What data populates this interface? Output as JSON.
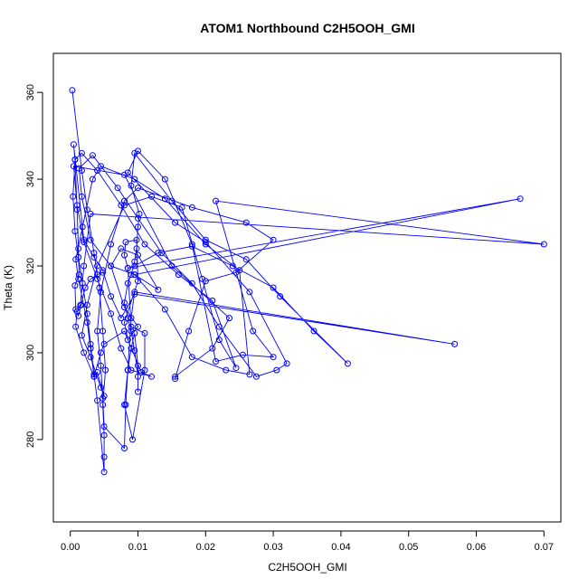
{
  "chart_data": {
    "type": "scatter",
    "title": "ATOM1 Northbound C2H5OOH_GMI",
    "xlabel": "C2H5OOH_GMI",
    "ylabel": "Theta (K)",
    "xlim": [
      -0.0025,
      0.0725
    ],
    "ylim": [
      261,
      369
    ],
    "x_ticks": [
      0.0,
      0.01,
      0.02,
      0.03,
      0.04,
      0.05,
      0.06,
      0.07
    ],
    "x_tick_labels": [
      "0.00",
      "0.01",
      "0.02",
      "0.03",
      "0.04",
      "0.05",
      "0.06",
      "0.07"
    ],
    "y_ticks": [
      280,
      300,
      320,
      340,
      360
    ],
    "y_tick_labels": [
      "280",
      "300",
      "320",
      "340",
      "360"
    ],
    "grid": false,
    "legend": "none",
    "series": [
      {
        "color": "#0000ff",
        "style": "line+points",
        "points": [
          [
            0.0003,
            360.5
          ],
          [
            0.0017,
            342.0
          ],
          [
            0.0025,
            333.0
          ],
          [
            0.0035,
            323.0
          ],
          [
            0.0043,
            315.0
          ],
          [
            0.0048,
            305.0
          ],
          [
            0.0052,
            296.0
          ],
          [
            0.0048,
            288.0
          ],
          [
            0.005,
            281.0
          ],
          [
            0.005,
            276.0
          ],
          [
            0.005,
            272.5
          ],
          [
            0.004,
            289.0
          ],
          [
            0.0035,
            295.0
          ],
          [
            0.003,
            302.0
          ],
          [
            0.0025,
            309.0
          ],
          [
            0.0018,
            316.0
          ],
          [
            0.0012,
            322.0
          ],
          [
            0.0007,
            328.0
          ],
          [
            0.0004,
            336.0
          ],
          [
            0.0007,
            344.5
          ],
          [
            0.0017,
            346.0
          ],
          [
            0.004,
            342.0
          ],
          [
            0.0075,
            334.0
          ],
          [
            0.011,
            325.0
          ],
          [
            0.016,
            318.0
          ],
          [
            0.021,
            312.0
          ],
          [
            0.0245,
            296.5
          ],
          [
            0.022,
            303.0
          ],
          [
            0.0195,
            317.0
          ],
          [
            0.0165,
            333.5
          ],
          [
            0.012,
            336.0
          ],
          [
            0.008,
            334.0
          ],
          [
            0.004,
            320.0
          ],
          [
            0.0025,
            311.0
          ],
          [
            0.0017,
            304.0
          ],
          [
            0.003,
            299.0
          ],
          [
            0.0045,
            292.0
          ],
          [
            0.005,
            290.0
          ],
          [
            0.004,
            295.5
          ],
          [
            0.0035,
            294.5
          ],
          [
            0.003,
            301.0
          ],
          [
            0.0025,
            307.0
          ],
          [
            0.0012,
            317.0
          ],
          [
            0.0008,
            321.5
          ],
          [
            0.0018,
            329.0
          ],
          [
            0.0033,
            340.0
          ],
          [
            0.0045,
            343.0
          ],
          [
            0.0095,
            340.0
          ],
          [
            0.014,
            335.5
          ],
          [
            0.02,
            325.0
          ],
          [
            0.025,
            319.0
          ],
          [
            0.0265,
            295.0
          ],
          [
            0.023,
            296.0
          ],
          [
            0.018,
            299.0
          ],
          [
            0.014,
            310.0
          ],
          [
            0.0095,
            318.0
          ],
          [
            0.006,
            320.0
          ],
          [
            0.003,
            326.0
          ],
          [
            0.0017,
            336.0
          ],
          [
            0.0013,
            342.5
          ],
          [
            0.0033,
            345.5
          ],
          [
            0.007,
            338.0
          ],
          [
            0.01,
            331.0
          ],
          [
            0.0135,
            323.0
          ],
          [
            0.018,
            316.0
          ],
          [
            0.022,
            306.0
          ],
          [
            0.0275,
            294.5
          ],
          [
            0.0305,
            296.0
          ],
          [
            0.032,
            297.5
          ],
          [
            0.0265,
            314.0
          ],
          [
            0.02,
            325.5
          ],
          [
            0.0155,
            330.0
          ],
          [
            0.0085,
            341.5
          ],
          [
            0.01,
            346.5
          ],
          [
            0.014,
            340.0
          ],
          [
            0.018,
            325.0
          ],
          [
            0.0215,
            298.0
          ],
          [
            0.0255,
            299.5
          ],
          [
            0.03,
            299.0
          ],
          [
            0.027,
            305.0
          ],
          [
            0.0215,
            335.0
          ],
          [
            0.07,
            325.0
          ],
          [
            0.003,
            332.0
          ],
          [
            0.002,
            320.0
          ],
          [
            0.0015,
            311.0
          ],
          [
            0.001,
            309.5
          ],
          [
            0.0008,
            306.0
          ],
          [
            0.002,
            300.0
          ],
          [
            0.0035,
            294.5
          ],
          [
            0.0045,
            300.0
          ],
          [
            0.005,
            302.0
          ],
          [
            0.008,
            305.0
          ],
          [
            0.0105,
            295.5
          ],
          [
            0.012,
            294.5
          ],
          [
            0.009,
            296.0
          ],
          [
            0.0075,
            301.0
          ],
          [
            0.006,
            309.0
          ],
          [
            0.004,
            317.0
          ],
          [
            0.002,
            325.5
          ],
          [
            0.001,
            334.0
          ],
          [
            0.0005,
            343.0
          ],
          [
            0.008,
            341.0
          ],
          [
            0.015,
            320.0
          ],
          [
            0.0235,
            308.0
          ],
          [
            0.021,
            301.0
          ],
          [
            0.0155,
            294.5
          ],
          [
            0.0155,
            294.0
          ],
          [
            0.0175,
            305.0
          ],
          [
            0.02,
            316.5
          ],
          [
            0.0245,
            318.5
          ],
          [
            0.03,
            326.0
          ],
          [
            0.026,
            330.0
          ],
          [
            0.018,
            333.5
          ],
          [
            0.01,
            338.0
          ],
          [
            0.008,
            335.0
          ],
          [
            0.006,
            325.0
          ],
          [
            0.0045,
            314.0
          ],
          [
            0.004,
            305.0
          ],
          [
            0.0045,
            297.0
          ],
          [
            0.0048,
            289.5
          ],
          [
            0.005,
            283.0
          ],
          [
            0.008,
            278.0
          ],
          [
            0.0082,
            288.0
          ],
          [
            0.0085,
            296.0
          ],
          [
            0.009,
            301.0
          ],
          [
            0.0095,
            304.5
          ],
          [
            0.01,
            297.0
          ],
          [
            0.01,
            291.0
          ],
          [
            0.01,
            294.5
          ],
          [
            0.0095,
            300.5
          ],
          [
            0.009,
            305.0
          ],
          [
            0.0085,
            308.0
          ],
          [
            0.008,
            311.5
          ],
          [
            0.0085,
            316.0
          ],
          [
            0.009,
            318.0
          ],
          [
            0.0095,
            321.0
          ],
          [
            0.0098,
            324.0
          ],
          [
            0.01,
            329.0
          ],
          [
            0.0102,
            332.0
          ],
          [
            0.009,
            338.5
          ],
          [
            0.0095,
            346.0
          ],
          [
            0.015,
            335.0
          ],
          [
            0.02,
            326.0
          ],
          [
            0.026,
            321.5
          ],
          [
            0.031,
            313.0
          ],
          [
            0.041,
            297.5
          ],
          [
            0.036,
            305.0
          ],
          [
            0.03,
            315.0
          ],
          [
            0.024,
            320.0
          ],
          [
            0.018,
            324.5
          ],
          [
            0.013,
            323.0
          ],
          [
            0.0095,
            320.0
          ],
          [
            0.0085,
            319.5
          ],
          [
            0.0665,
            335.5
          ],
          [
            0.0095,
            318.0
          ],
          [
            0.013,
            314.5
          ],
          [
            0.01,
            322.5
          ],
          [
            0.0075,
            324.0
          ],
          [
            0.006,
            320.0
          ],
          [
            0.008,
            310.5
          ],
          [
            0.01,
            306.0
          ],
          [
            0.0085,
            303.0
          ],
          [
            0.008,
            307.0
          ],
          [
            0.01,
            316.5
          ],
          [
            0.0098,
            326.0
          ],
          [
            0.0082,
            325.5
          ],
          [
            0.008,
            322.5
          ],
          [
            0.0085,
            319.5
          ],
          [
            0.009,
            306.0
          ],
          [
            0.011,
            304.5
          ],
          [
            0.011,
            296.0
          ],
          [
            0.0092,
            280.0
          ],
          [
            0.008,
            288.0
          ],
          [
            0.0085,
            296.0
          ],
          [
            0.009,
            308.0
          ],
          [
            0.0095,
            314.0
          ],
          [
            0.0568,
            302.0
          ],
          [
            0.0095,
            313.5
          ],
          [
            0.0075,
            308.0
          ],
          [
            0.006,
            313.0
          ],
          [
            0.0048,
            319.0
          ],
          [
            0.0035,
            322.0
          ],
          [
            0.002,
            326.0
          ],
          [
            0.0005,
            348.0
          ],
          [
            0.0007,
            344.5
          ],
          [
            0.001,
            333.0
          ],
          [
            0.0012,
            324.0
          ],
          [
            0.0013,
            318.0
          ],
          [
            0.0007,
            315.5
          ],
          [
            0.0008,
            310.0
          ],
          [
            0.0012,
            308.5
          ],
          [
            0.0016,
            311.0
          ],
          [
            0.0022,
            315.0
          ],
          [
            0.003,
            317.0
          ],
          [
            0.004,
            318.0
          ],
          [
            0.0048,
            318.5
          ]
        ]
      }
    ]
  }
}
